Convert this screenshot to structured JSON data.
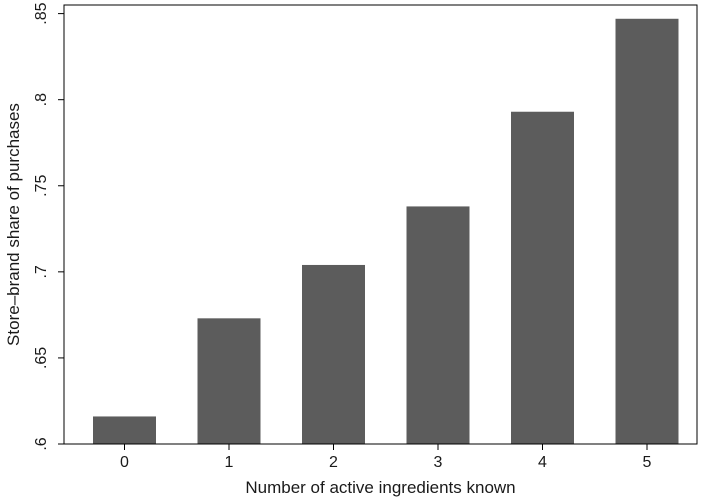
{
  "chart_data": {
    "type": "bar",
    "categories": [
      "0",
      "1",
      "2",
      "3",
      "4",
      "5"
    ],
    "values": [
      0.616,
      0.673,
      0.704,
      0.738,
      0.793,
      0.847
    ],
    "xlabel": "Number of active ingredients known",
    "ylabel": "Store–brand share of purchases",
    "ylim": [
      0.6,
      0.855
    ],
    "yticks": [
      ".6",
      ".65",
      ".7",
      ".75",
      ".8",
      ".85"
    ],
    "grid": false,
    "bar_color": "#5c5c5c"
  }
}
